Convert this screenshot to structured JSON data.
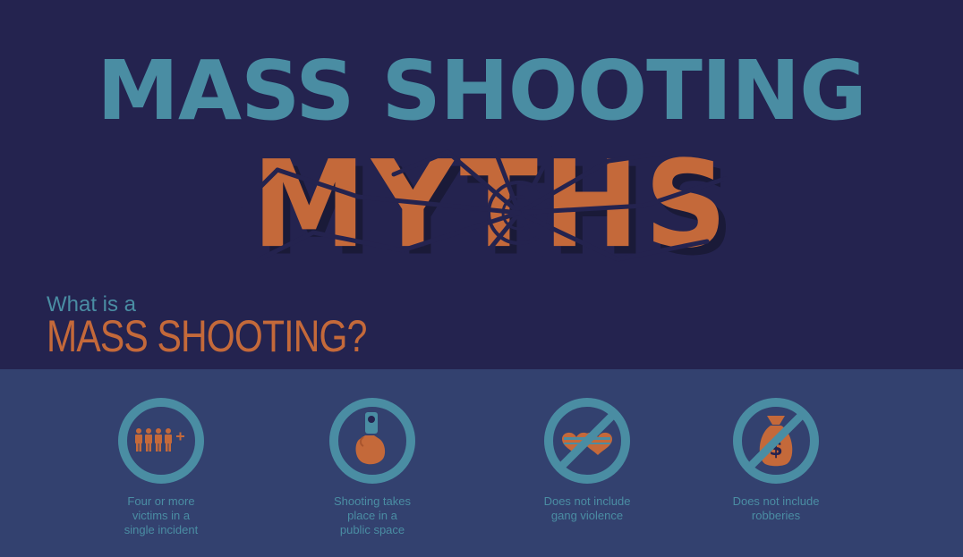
{
  "header": {
    "title_line1": "MASS SHOOTING",
    "title_line2": "MYTHS"
  },
  "section": {
    "prefix": "What is a",
    "heading": "MASS SHOOTING?"
  },
  "criteria": [
    {
      "icon": "four-victims-icon",
      "caption": [
        "Four or more",
        "victims in a",
        "single incident"
      ]
    },
    {
      "icon": "handgun-icon",
      "caption": [
        "Shooting takes",
        "place in a",
        "public space"
      ]
    },
    {
      "icon": "no-gang-violence-icon",
      "caption": [
        "Does not include",
        "gang violence"
      ]
    },
    {
      "icon": "no-robbery-icon",
      "caption": [
        "Does not include",
        "robberies"
      ]
    }
  ],
  "colors": {
    "top_background": "#24234f",
    "bottom_background": "#33416f",
    "teal": "#4a8da3",
    "orange": "#c4693a"
  }
}
